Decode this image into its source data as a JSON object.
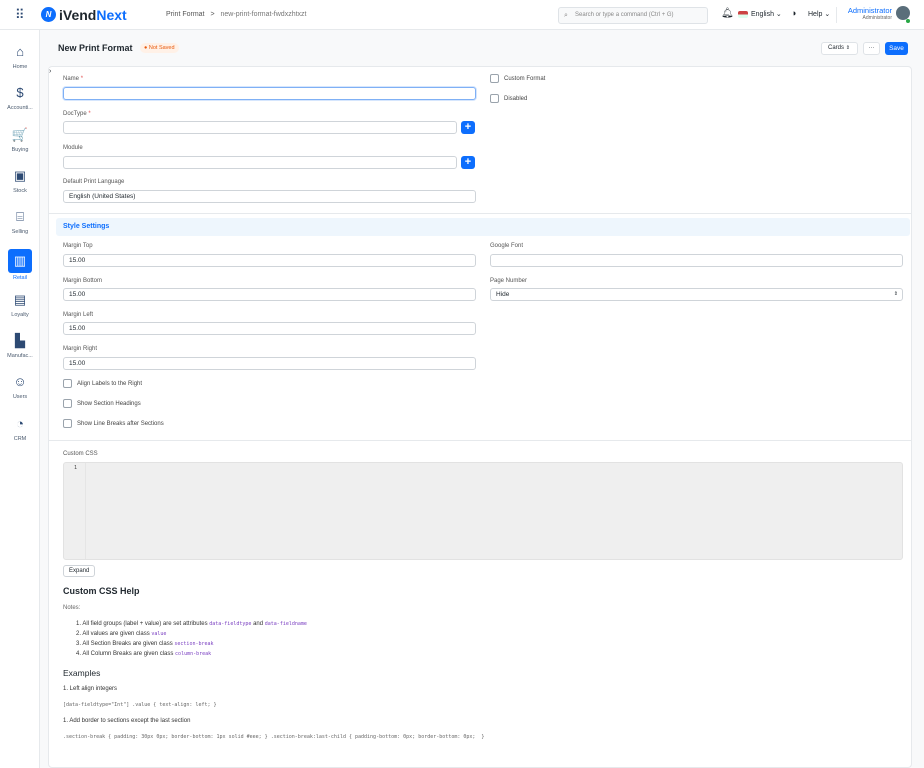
{
  "app": {
    "logo": "iVendNext",
    "logo_prefix": "iVend",
    "logo_suffix": "Next"
  },
  "breadcrumb": {
    "parent": "Print Format",
    "current": "new-print-format-fwdxzhtxzt"
  },
  "search": {
    "placeholder": "Search or type a command (Ctrl + G)"
  },
  "topbar": {
    "language": "English",
    "help": "Help",
    "user_name": "Administrator",
    "user_role": "Administrator"
  },
  "sidebar": {
    "items": [
      {
        "label": "Home",
        "icon": "home-icon",
        "glyph": "⌂"
      },
      {
        "label": "Accounti...",
        "icon": "dollar-icon",
        "glyph": "$"
      },
      {
        "label": "Buying",
        "icon": "cart-icon",
        "glyph": "🛒"
      },
      {
        "label": "Stock",
        "icon": "box-icon",
        "glyph": "▣"
      },
      {
        "label": "Selling",
        "icon": "selling-icon",
        "glyph": "⌸"
      },
      {
        "label": "Retail",
        "icon": "barcode-icon",
        "glyph": "▥",
        "active": true
      },
      {
        "label": "Loyalty",
        "icon": "id-card-icon",
        "glyph": "▤"
      },
      {
        "label": "Manufac...",
        "icon": "factory-icon",
        "glyph": "▙"
      },
      {
        "label": "Users",
        "icon": "users-icon",
        "glyph": "☺"
      },
      {
        "label": "CRM",
        "icon": "crm-icon",
        "glyph": "◔"
      }
    ]
  },
  "page": {
    "title": "New Print Format",
    "status": "Not Saved",
    "view_select": "Cards",
    "more": "···",
    "save": "Save"
  },
  "form": {
    "name": {
      "label": "Name",
      "value": ""
    },
    "doctype": {
      "label": "DocType",
      "value": ""
    },
    "module": {
      "label": "Module",
      "value": ""
    },
    "language": {
      "label": "Default Print Language",
      "value": "English (United States)"
    },
    "custom_format": {
      "label": "Custom Format",
      "checked": false
    },
    "disabled": {
      "label": "Disabled",
      "checked": false
    },
    "style_section": "Style Settings",
    "margin_top": {
      "label": "Margin Top",
      "value": "15.00"
    },
    "margin_bottom": {
      "label": "Margin Bottom",
      "value": "15.00"
    },
    "margin_left": {
      "label": "Margin Left",
      "value": "15.00"
    },
    "margin_right": {
      "label": "Margin Right",
      "value": "15.00"
    },
    "google_font": {
      "label": "Google Font",
      "value": ""
    },
    "page_number": {
      "label": "Page Number",
      "value": "Hide"
    },
    "align_labels": {
      "label": "Align Labels to the Right",
      "checked": false
    },
    "show_headings": {
      "label": "Show Section Headings",
      "checked": false
    },
    "line_breaks": {
      "label": "Show Line Breaks after Sections",
      "checked": false
    },
    "custom_css": {
      "label": "Custom CSS",
      "line_number": "1",
      "expand": "Expand"
    }
  },
  "help": {
    "title": "Custom CSS Help",
    "notes_label": "Notes:",
    "notes": [
      {
        "text": "1. All field groups (label + value) are set attributes ",
        "code1": "data-fieldtype",
        "mid": " and ",
        "code2": "data-fieldname"
      },
      {
        "text": "2. All values are given class ",
        "code1": "value"
      },
      {
        "text": "3. All Section Breaks are given class ",
        "code1": "section-break"
      },
      {
        "text": "4. All Column Breaks are given class ",
        "code1": "column-break"
      }
    ],
    "examples_title": "Examples",
    "ex1_title": "1. Left align integers",
    "ex1_code": "[data-fieldtype=\"Int\"] .value { text-align: left; }",
    "ex2_title": "1. Add border to sections except the last section",
    "ex2_code": ".section-break { padding: 30px 0px; border-bottom: 1px solid #eee; } .section-break:last-child { padding-bottom: 0px; border-bottom: 0px;  }"
  },
  "colors": {
    "accent": "#0d6efd",
    "status": "#e8590c"
  }
}
